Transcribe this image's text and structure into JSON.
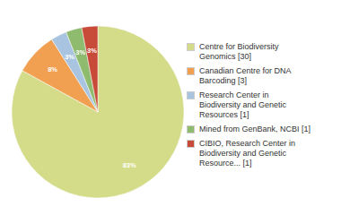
{
  "chart_data": {
    "type": "pie",
    "categories": [
      "Centre for Biodiversity\nGenomics [30]",
      "Canadian Centre for DNA\nBarcoding [3]",
      "Research Center in\nBiodiversity and Genetic\nResources [1]",
      "Mined from GenBank, NCBI [1]",
      "CIBIO, Research Center in\nBiodiversity and Genetic\nResource... [1]"
    ],
    "values": [
      83,
      8,
      3,
      3,
      3
    ],
    "value_labels": [
      "83%",
      "8%",
      "3%",
      "3%",
      "3%"
    ],
    "colors": [
      "#d4dc8a",
      "#f0a050",
      "#a8c4e0",
      "#8fbb6e",
      "#c84b3a"
    ],
    "data_labels": true,
    "legend": "right"
  }
}
